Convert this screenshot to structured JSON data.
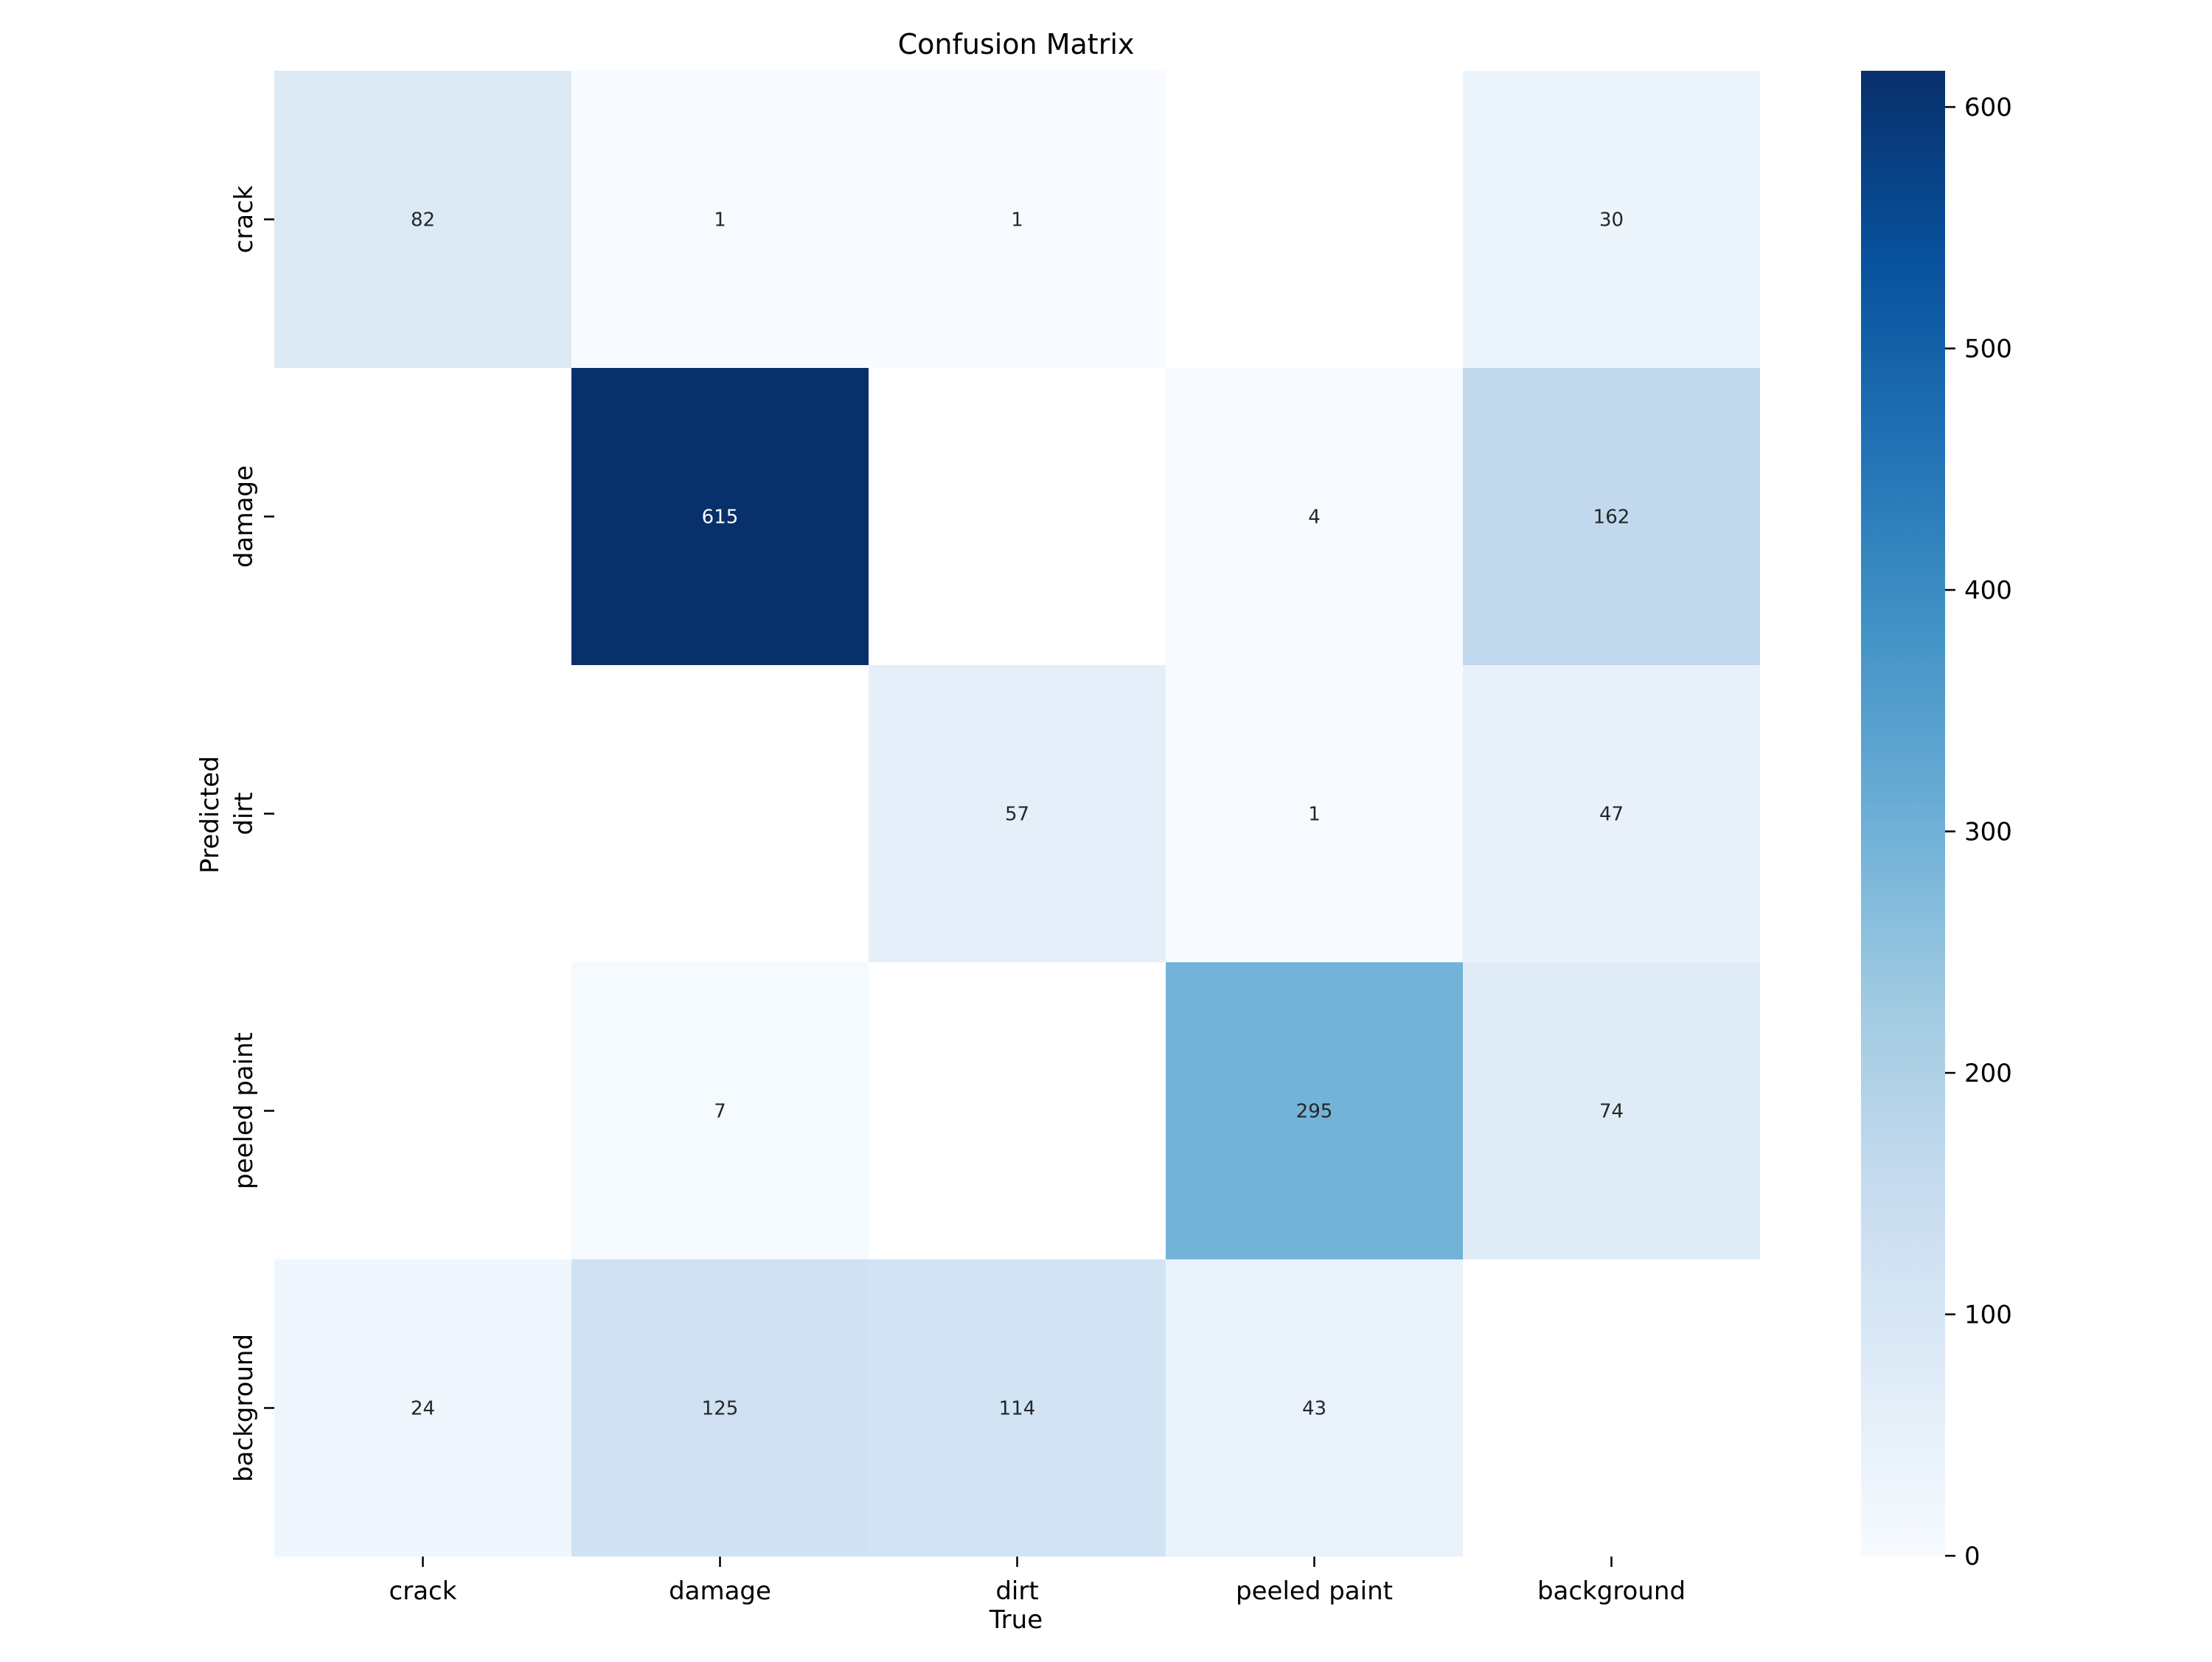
{
  "chart_data": {
    "type": "heatmap",
    "title": "Confusion Matrix",
    "xlabel": "True",
    "ylabel": "Predicted",
    "x_categories": [
      "crack",
      "damage",
      "dirt",
      "peeled paint",
      "background"
    ],
    "y_categories": [
      "crack",
      "damage",
      "dirt",
      "peeled paint",
      "background"
    ],
    "values": [
      [
        82,
        1,
        1,
        null,
        30
      ],
      [
        null,
        615,
        null,
        4,
        162
      ],
      [
        null,
        null,
        57,
        1,
        47
      ],
      [
        null,
        7,
        null,
        295,
        74
      ],
      [
        24,
        125,
        114,
        43,
        null
      ]
    ],
    "colorbar": {
      "min": 0,
      "max": 615,
      "ticks": [
        0,
        100,
        200,
        300,
        400,
        500,
        600
      ],
      "colormap": "Blues",
      "placement": "right"
    },
    "colors": {
      "empty_cell": "#ffffff",
      "text_dark": "#262626",
      "text_light": "#ffffff",
      "axis": "#000000"
    }
  }
}
